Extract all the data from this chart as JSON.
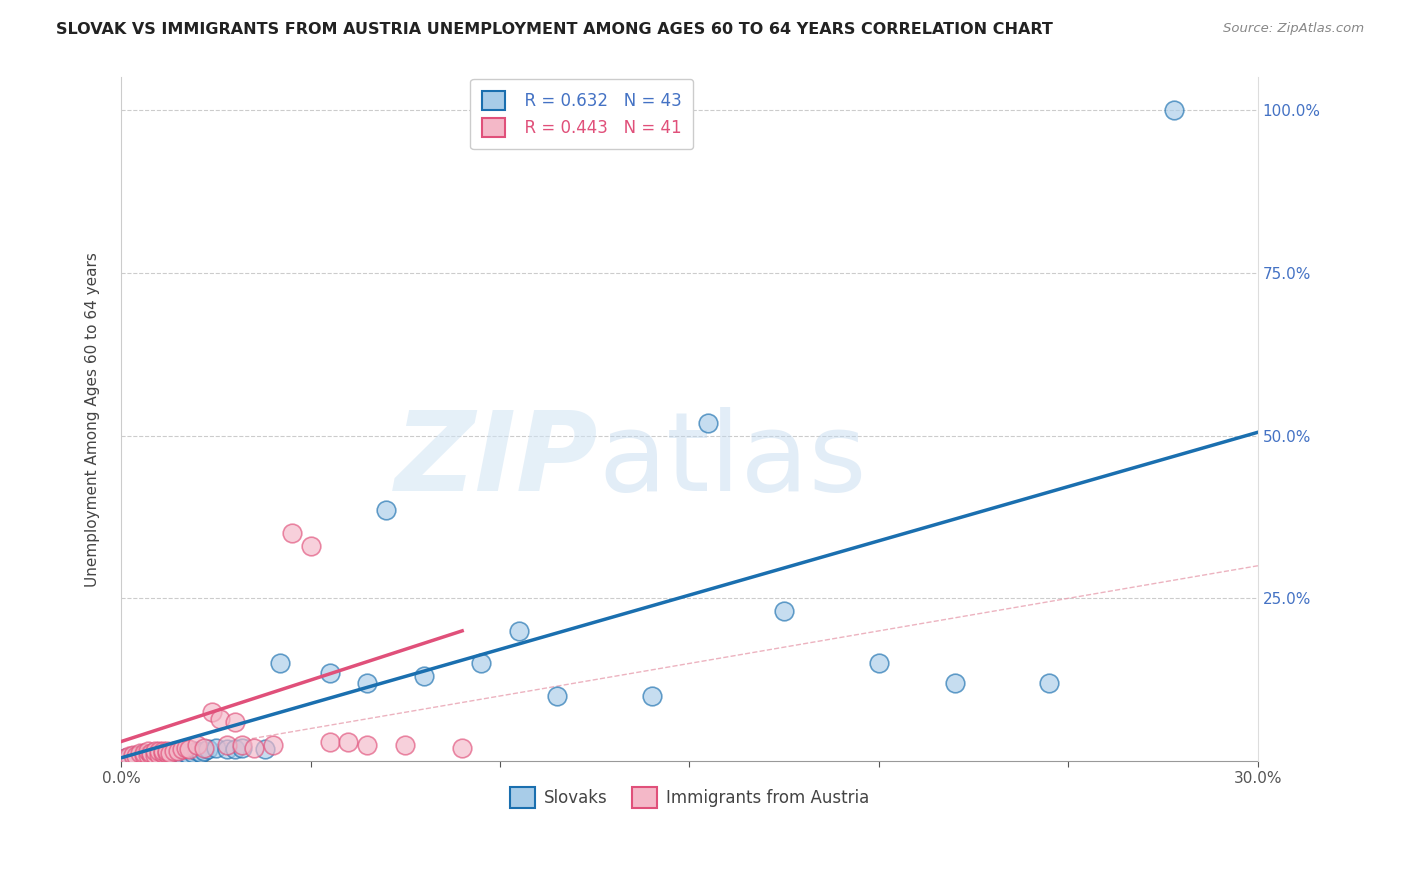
{
  "title": "SLOVAK VS IMMIGRANTS FROM AUSTRIA UNEMPLOYMENT AMONG AGES 60 TO 64 YEARS CORRELATION CHART",
  "source": "Source: ZipAtlas.com",
  "ylabel": "Unemployment Among Ages 60 to 64 years",
  "xlim": [
    0.0,
    0.3
  ],
  "ylim": [
    0.0,
    1.05
  ],
  "yticks": [
    0.0,
    0.25,
    0.5,
    0.75,
    1.0
  ],
  "ytick_labels": [
    "",
    "25.0%",
    "50.0%",
    "75.0%",
    "100.0%"
  ],
  "xtick_labels": [
    "0.0%",
    "",
    "",
    "",
    "",
    "",
    "30.0%"
  ],
  "legend_r1": "R = 0.632",
  "legend_n1": "N = 43",
  "legend_r2": "R = 0.443",
  "legend_n2": "N = 41",
  "legend_label1": "Slovaks",
  "legend_label2": "Immigrants from Austria",
  "color_blue": "#a8cce8",
  "color_pink": "#f4b8c8",
  "color_line_blue": "#1a6faf",
  "color_line_pink": "#e0507a",
  "color_diagonal": "#e8a0b0",
  "watermark_zip": "ZIP",
  "watermark_atlas": "atlas",
  "slovaks_x": [
    0.001,
    0.002,
    0.003,
    0.004,
    0.005,
    0.006,
    0.007,
    0.008,
    0.009,
    0.01,
    0.011,
    0.012,
    0.013,
    0.014,
    0.015,
    0.016,
    0.017,
    0.018,
    0.019,
    0.02,
    0.021,
    0.022,
    0.023,
    0.025,
    0.028,
    0.03,
    0.032,
    0.038,
    0.042,
    0.055,
    0.065,
    0.07,
    0.08,
    0.095,
    0.105,
    0.115,
    0.14,
    0.155,
    0.175,
    0.2,
    0.22,
    0.245,
    0.278
  ],
  "slovaks_y": [
    0.005,
    0.005,
    0.008,
    0.005,
    0.01,
    0.006,
    0.008,
    0.005,
    0.006,
    0.008,
    0.006,
    0.008,
    0.007,
    0.008,
    0.008,
    0.01,
    0.012,
    0.01,
    0.012,
    0.015,
    0.012,
    0.015,
    0.018,
    0.02,
    0.018,
    0.018,
    0.02,
    0.018,
    0.15,
    0.135,
    0.12,
    0.385,
    0.13,
    0.15,
    0.2,
    0.1,
    0.1,
    0.52,
    0.23,
    0.15,
    0.12,
    0.12,
    1.0
  ],
  "austria_x": [
    0.001,
    0.002,
    0.003,
    0.004,
    0.005,
    0.006,
    0.006,
    0.007,
    0.007,
    0.008,
    0.008,
    0.009,
    0.009,
    0.01,
    0.01,
    0.011,
    0.011,
    0.012,
    0.012,
    0.013,
    0.014,
    0.015,
    0.016,
    0.017,
    0.018,
    0.02,
    0.022,
    0.024,
    0.026,
    0.028,
    0.03,
    0.032,
    0.035,
    0.04,
    0.045,
    0.05,
    0.055,
    0.06,
    0.065,
    0.075,
    0.09
  ],
  "austria_y": [
    0.005,
    0.008,
    0.01,
    0.008,
    0.012,
    0.01,
    0.012,
    0.01,
    0.015,
    0.01,
    0.012,
    0.01,
    0.015,
    0.01,
    0.015,
    0.012,
    0.015,
    0.012,
    0.015,
    0.012,
    0.015,
    0.015,
    0.018,
    0.02,
    0.018,
    0.025,
    0.02,
    0.075,
    0.065,
    0.025,
    0.06,
    0.025,
    0.02,
    0.025,
    0.35,
    0.33,
    0.03,
    0.03,
    0.025,
    0.025,
    0.02
  ],
  "blue_trend_x": [
    0.0,
    0.3
  ],
  "blue_trend_y": [
    0.005,
    0.505
  ],
  "pink_trend_x": [
    0.0,
    0.09
  ],
  "pink_trend_y": [
    0.03,
    0.2
  ]
}
